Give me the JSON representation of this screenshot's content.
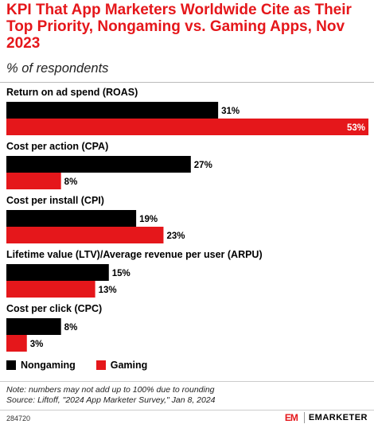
{
  "header": {
    "title": "KPI That App Marketers Worldwide Cite as Their Top Priority, Nongaming vs. Gaming Apps, Nov 2023",
    "subtitle": "% of respondents"
  },
  "colors": {
    "nongaming": "#000000",
    "gaming": "#e5171b"
  },
  "chart_data": {
    "type": "bar",
    "orientation": "horizontal",
    "categories": [
      "Return on ad spend (ROAS)",
      "Cost per action (CPA)",
      "Cost per install (CPI)",
      "Lifetime value (LTV)/Average revenue per user (ARPU)",
      "Cost per click (CPC)"
    ],
    "series": [
      {
        "name": "Nongaming",
        "values": [
          31,
          27,
          19,
          15,
          8
        ],
        "labels": [
          "31%",
          "27%",
          "19%",
          "15%",
          "8%"
        ]
      },
      {
        "name": "Gaming",
        "values": [
          53,
          8,
          23,
          13,
          3
        ],
        "labels": [
          "53%",
          "8%",
          "23%",
          "13%",
          "3%"
        ]
      }
    ],
    "xlim": [
      0,
      53
    ],
    "legend_position": "bottom-left",
    "grid": false
  },
  "legend": {
    "nongaming": "Nongaming",
    "gaming": "Gaming"
  },
  "footer": {
    "note": "Note: numbers may not add up to 100% due to rounding",
    "source": "Source: Liftoff, \"2024 App Marketer Survey,\" Jan 8, 2024",
    "chart_id": "284720",
    "brand": "EMARKETER",
    "brand_mark": "EM"
  }
}
